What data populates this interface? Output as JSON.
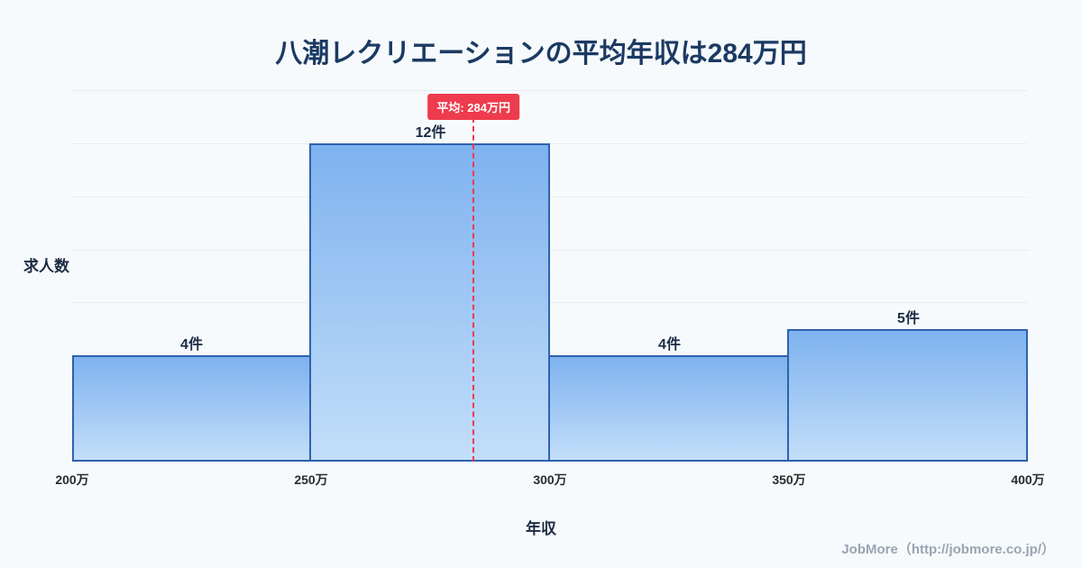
{
  "title": "八潮レクリエーションの平均年収は284万円",
  "chart_data": {
    "type": "bar",
    "title": "八潮レクリエーションの平均年収は284万円",
    "xlabel": "年収",
    "ylabel": "求人数",
    "x_ticks": [
      "200万",
      "250万",
      "300万",
      "350万",
      "400万"
    ],
    "bins": [
      [
        200,
        250
      ],
      [
        250,
        300
      ],
      [
        300,
        350
      ],
      [
        350,
        400
      ]
    ],
    "values": [
      4,
      12,
      4,
      5
    ],
    "bar_labels": [
      "4件",
      "12件",
      "4件",
      "5件"
    ],
    "x_range": [
      200,
      400
    ],
    "ylim": [
      0,
      14
    ],
    "grid": true,
    "legend": "none",
    "average_value": 284,
    "average_label": "平均: 284万円",
    "colors": {
      "bar_fill_top": "#7eb2ef",
      "bar_fill_bottom": "#c3def9",
      "bar_border": "#2e62ad",
      "average_line": "#ee3b4d",
      "title_text": "#1b3a63",
      "background": "#f7fafc"
    }
  },
  "footer": {
    "credit": "JobMore（http://jobmore.co.jp/）"
  }
}
